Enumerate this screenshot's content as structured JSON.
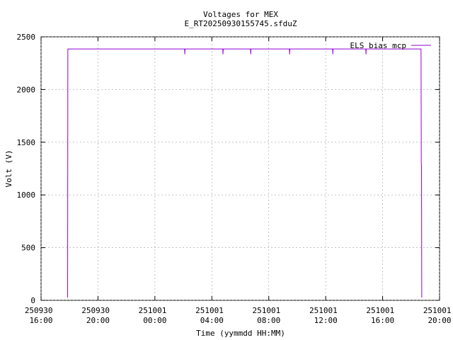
{
  "chart_data": {
    "type": "line",
    "title": "Voltages for MEX",
    "subtitle": "E_RT20250930155745.sfduZ",
    "xlabel": "Time (yymmdd HH:MM)",
    "ylabel": "Volt (V)",
    "x": [
      "250930 17:52",
      "250930 17:53",
      "251001 02:05",
      "251001 02:06",
      "251001 02:07",
      "251001 04:46",
      "251001 04:47",
      "251001 04:48",
      "251001 06:43",
      "251001 06:44",
      "251001 06:45",
      "251001 09:27",
      "251001 09:28",
      "251001 09:29",
      "251001 12:29",
      "251001 12:30",
      "251001 12:31",
      "251001 14:49",
      "251001 14:50",
      "251001 14:51",
      "251001 18:42",
      "251001 18:43",
      "251001 18:44",
      "251001 18:45"
    ],
    "series": [
      {
        "name": "ELS bias mcp",
        "color": "#9400d3",
        "values": [
          25,
          2385,
          2385,
          2335,
          2385,
          2385,
          2335,
          2385,
          2385,
          2335,
          2385,
          2385,
          2335,
          2385,
          2385,
          2335,
          2385,
          2385,
          2335,
          2385,
          2385,
          1290,
          1280,
          25
        ]
      }
    ],
    "xlim": [
      "250930 16:00",
      "251001 20:00"
    ],
    "xticks": [
      "250930 16:00",
      "250930 20:00",
      "251001 00:00",
      "251001 04:00",
      "251001 08:00",
      "251001 12:00",
      "251001 16:00",
      "251001 20:00"
    ],
    "ylim": [
      0,
      2500
    ],
    "yticks": [
      0,
      500,
      1000,
      1500,
      2000,
      2500
    ],
    "grid": true,
    "legend": "top-right"
  }
}
